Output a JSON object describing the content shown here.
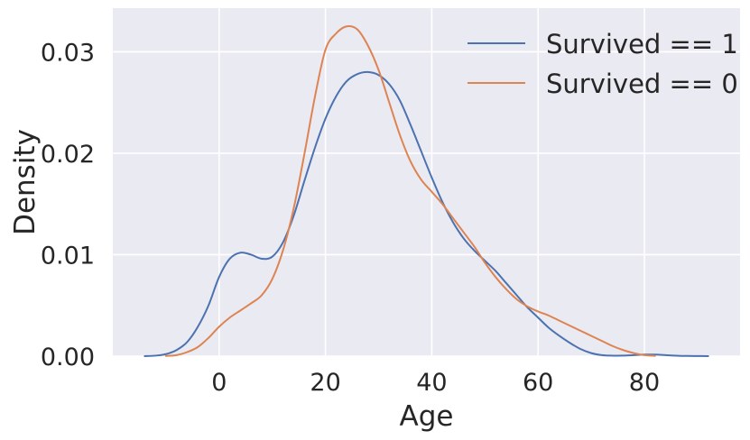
{
  "chart_data": {
    "type": "line",
    "title": "",
    "xlabel": "Age",
    "ylabel": "Density",
    "xlim": [
      -20,
      98
    ],
    "ylim": [
      0,
      0.0343
    ],
    "xticks": [
      0,
      20,
      40,
      60,
      80
    ],
    "xtick_labels": [
      "0",
      "20",
      "40",
      "60",
      "80"
    ],
    "yticks": [
      0.0,
      0.01,
      0.02,
      0.03
    ],
    "ytick_labels": [
      "0.00",
      "0.01",
      "0.02",
      "0.03"
    ],
    "grid": true,
    "legend_position": "top-right",
    "series": [
      {
        "name": "Survived == 1",
        "color": "#4c72b0",
        "x": [
          -14,
          -12,
          -10,
          -8,
          -6,
          -4,
          -2,
          0,
          2,
          4,
          6,
          8,
          10,
          12,
          14,
          16,
          18,
          20,
          22,
          24,
          26,
          28,
          30,
          32,
          34,
          36,
          38,
          40,
          42,
          44,
          46,
          48,
          50,
          52,
          54,
          56,
          58,
          60,
          62,
          64,
          66,
          68,
          70,
          72,
          74,
          76,
          78,
          80,
          82,
          84,
          86,
          88,
          90,
          92
        ],
        "y": [
          0.0,
          5e-05,
          0.0002,
          0.0006,
          0.0014,
          0.0029,
          0.005,
          0.0078,
          0.0096,
          0.0102,
          0.01,
          0.0096,
          0.0098,
          0.0112,
          0.0138,
          0.0172,
          0.0205,
          0.0234,
          0.0256,
          0.0271,
          0.0278,
          0.028,
          0.0277,
          0.0268,
          0.0252,
          0.0228,
          0.0202,
          0.0176,
          0.0152,
          0.0132,
          0.0116,
          0.0104,
          0.0094,
          0.0084,
          0.0072,
          0.006,
          0.0048,
          0.0038,
          0.0028,
          0.002,
          0.0013,
          0.0007,
          0.0003,
          0.0001,
          5e-05,
          6e-05,
          0.0001,
          0.00015,
          0.00015,
          0.0001,
          5e-05,
          2e-05,
          1e-05,
          0.0
        ]
      },
      {
        "name": "Survived == 0",
        "color": "#dd8452",
        "x": [
          -10,
          -8,
          -6,
          -4,
          -2,
          0,
          2,
          4,
          6,
          8,
          10,
          12,
          14,
          16,
          18,
          20,
          22,
          24,
          26,
          28,
          30,
          32,
          34,
          36,
          38,
          40,
          42,
          44,
          46,
          48,
          50,
          52,
          54,
          56,
          58,
          60,
          62,
          64,
          66,
          68,
          70,
          72,
          74,
          76,
          78,
          80,
          82
        ],
        "y": [
          2e-05,
          0.0001,
          0.0004,
          0.0009,
          0.0018,
          0.0029,
          0.0038,
          0.0045,
          0.0052,
          0.006,
          0.0076,
          0.0104,
          0.0145,
          0.0198,
          0.0255,
          0.0302,
          0.0318,
          0.0325,
          0.0322,
          0.0306,
          0.0282,
          0.025,
          0.0218,
          0.0192,
          0.0174,
          0.0162,
          0.015,
          0.0136,
          0.0122,
          0.0108,
          0.0092,
          0.0078,
          0.0066,
          0.0056,
          0.0049,
          0.0044,
          0.004,
          0.0035,
          0.003,
          0.0025,
          0.002,
          0.0015,
          0.001,
          0.0006,
          0.0003,
          0.0001,
          3e-05
        ]
      }
    ]
  }
}
